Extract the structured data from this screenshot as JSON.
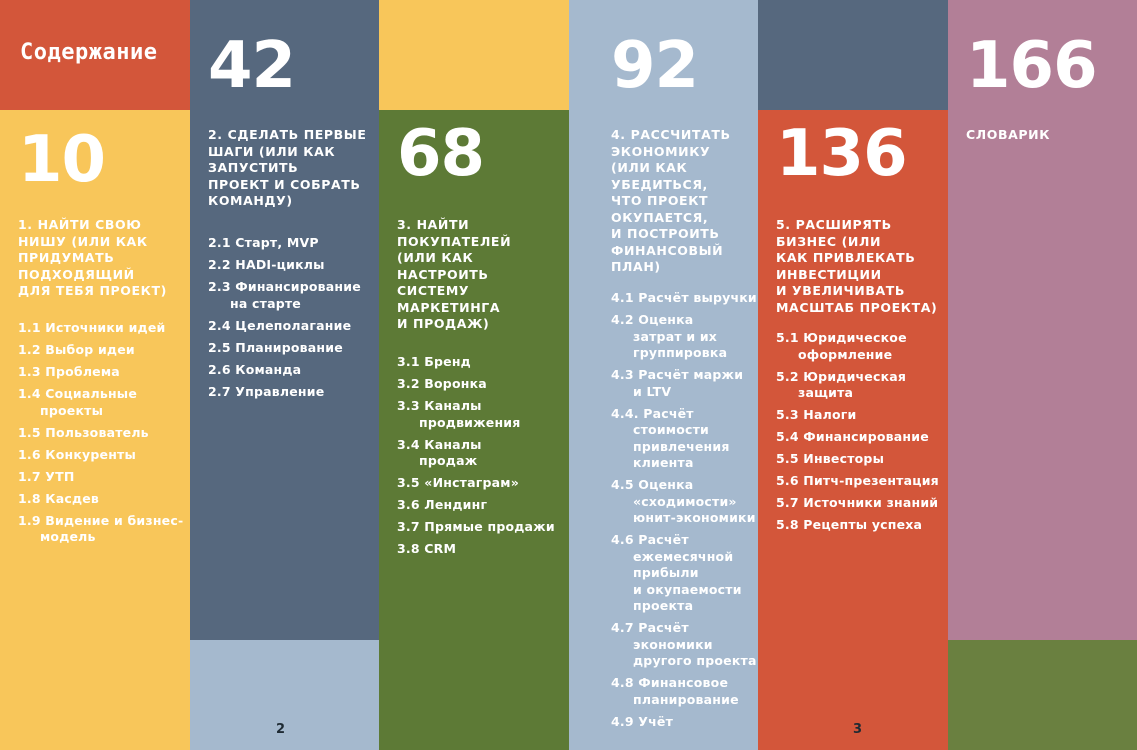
{
  "colors": {
    "red": "#d3563a",
    "yellow": "#f8c65a",
    "slate": "#56687e",
    "green": "#5d7a36",
    "light_blue": "#a5b9ce",
    "mauve": "#b27f97",
    "olive": "#6a8040"
  },
  "toc_title": "Содержание",
  "col1": {
    "page": "10",
    "title": "1. Найти свою\nнишу (или как\nпридумать\nподходящий\nдля тебя проект)",
    "items": [
      "1.1 Источники идей",
      "1.2 Выбор идеи",
      "1.3 Проблема",
      "1.4 Социальные\nпроекты",
      "1.5 Пользователь",
      "1.6 Конкуренты",
      "1.7 УТП",
      "1.8 Касдев",
      "1.9 Видение и бизнес-\nмодель"
    ]
  },
  "col2": {
    "page": "42",
    "title": "2. Сделать первые\nшаги (или как\nзапустить\nпроект и собрать\nкоманду)",
    "items": [
      "2.1 Старт, MVP",
      "2.2 HADI-циклы",
      "2.3 Финансирование\nна старте",
      "2.4 Целеполагание",
      "2.5 Планирование",
      "2.6 Команда",
      "2.7 Управление"
    ]
  },
  "col3": {
    "page": "68",
    "title": "3. Найти\nпокупателей\n(или как\nнастроить\nсистему\nмаркетинга\nи продаж)",
    "items": [
      "3.1 Бренд",
      "3.2 Воронка",
      "3.3 Каналы\nпродвижения",
      "3.4 Каналы\nпродаж",
      "3.5 «Инстаграм»",
      "3.6 Лендинг",
      "3.7 Прямые продажи",
      "3.8 CRM"
    ]
  },
  "col4": {
    "page": "92",
    "title": "4. Рассчитать\nэкономику\n(или как\nубедиться,\nчто проект\nокупается,\nи построить\nфинансовый\nплан)",
    "items": [
      "4.1 Расчёт выручки",
      "4.2 Оценка\nзатрат и их\nгруппировка",
      "4.3 Расчёт маржи\nи LTV",
      "4.4. Расчёт\nстоимости\nпривлечения\nклиента",
      "4.5 Оценка\n«сходимости»\nюнит-экономики",
      "4.6 Расчёт\nежемесячной\nприбыли\nи окупаемости\nпроекта",
      "4.7 Расчёт\nэкономики\nдругого проекта",
      "4.8 Финансовое\nпланирование",
      "4.9 Учёт"
    ]
  },
  "col5": {
    "page": "136",
    "title": "5. Расширять\nбизнес (или\nкак привлекать\nинвестиции\nи увеличивать\nмасштаб проекта)",
    "items": [
      "5.1 Юридическое\nоформление",
      "5.2 Юридическая\nзащита",
      "5.3 Налоги",
      "5.4 Финансирование",
      "5.5 Инвесторы",
      "5.6 Питч-презентация",
      "5.7 Источники знаний",
      "5.8 Рецепты успеха"
    ]
  },
  "col6": {
    "page": "166",
    "title": "Словарик"
  },
  "page_left": "2",
  "page_right": "3"
}
